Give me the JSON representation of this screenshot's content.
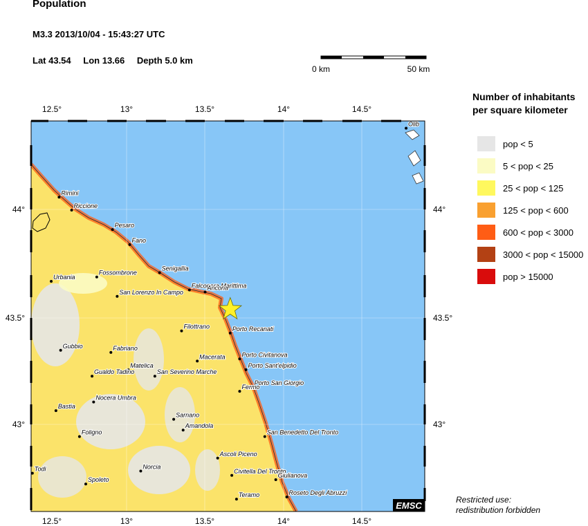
{
  "header": {
    "title": "Population",
    "event": "M3.3  2013/10/04 - 15:43:27 UTC",
    "lat": "Lat 43.54",
    "lon": "Lon  13.66",
    "depth": "Depth  5.0 km"
  },
  "scale_bar": {
    "start_label": "0 km",
    "end_label": "50 km"
  },
  "map": {
    "lon_ticks": [
      "12.5°",
      "13°",
      "13.5°",
      "14°",
      "14.5°"
    ],
    "lat_ticks": [
      "44°",
      "43.5°",
      "43°"
    ],
    "credit": "EMSC",
    "epicenter": {
      "lat": 43.54,
      "lon": 13.66
    },
    "colors": {
      "sea": "#87c6f7",
      "land": "#fbe36a",
      "epicenter": "#fff12a"
    },
    "cities": [
      {
        "name": "Rimini",
        "lon": 12.57,
        "lat": 44.06
      },
      {
        "name": "Riccione",
        "lon": 12.65,
        "lat": 44.0
      },
      {
        "name": "Pesaro",
        "lon": 12.91,
        "lat": 43.91
      },
      {
        "name": "Fano",
        "lon": 13.02,
        "lat": 43.84
      },
      {
        "name": "Senigallia",
        "lon": 13.21,
        "lat": 43.71
      },
      {
        "name": "Urbania",
        "lon": 12.52,
        "lat": 43.67
      },
      {
        "name": "Fossombrone",
        "lon": 12.81,
        "lat": 43.69
      },
      {
        "name": "Falconara Marittima",
        "lon": 13.4,
        "lat": 43.63
      },
      {
        "name": "Ancona",
        "lon": 13.5,
        "lat": 43.62
      },
      {
        "name": "San Lorenzo In Campo",
        "lon": 12.94,
        "lat": 43.6
      },
      {
        "name": "Filottrano",
        "lon": 13.35,
        "lat": 43.44
      },
      {
        "name": "Porto Recanati",
        "lon": 13.66,
        "lat": 43.43
      },
      {
        "name": "Gubbio",
        "lon": 12.58,
        "lat": 43.35
      },
      {
        "name": "Fabriano",
        "lon": 12.9,
        "lat": 43.34
      },
      {
        "name": "Porto Civitanova",
        "lon": 13.72,
        "lat": 43.31
      },
      {
        "name": "Macerata",
        "lon": 13.45,
        "lat": 43.3
      },
      {
        "name": "Porto Sant'elpidio",
        "lon": 13.76,
        "lat": 43.26
      },
      {
        "name": "Matelica",
        "lon": 13.01,
        "lat": 43.26
      },
      {
        "name": "Gualdo Tadino",
        "lon": 12.78,
        "lat": 43.23
      },
      {
        "name": "San Severino Marche",
        "lon": 13.18,
        "lat": 43.23
      },
      {
        "name": "Porto San Giorgio",
        "lon": 13.8,
        "lat": 43.18
      },
      {
        "name": "Fermo",
        "lon": 13.72,
        "lat": 43.16
      },
      {
        "name": "Nocera Umbra",
        "lon": 12.79,
        "lat": 43.11
      },
      {
        "name": "Bastia",
        "lon": 12.55,
        "lat": 43.07
      },
      {
        "name": "Sarnano",
        "lon": 13.3,
        "lat": 43.03
      },
      {
        "name": "Amandola",
        "lon": 13.36,
        "lat": 42.98
      },
      {
        "name": "Foligno",
        "lon": 12.7,
        "lat": 42.95
      },
      {
        "name": "San Benedetto Del Tronto",
        "lon": 13.88,
        "lat": 42.95
      },
      {
        "name": "Ascoli Piceno",
        "lon": 13.58,
        "lat": 42.85
      },
      {
        "name": "Todi",
        "lon": 12.4,
        "lat": 42.78
      },
      {
        "name": "Norcia",
        "lon": 13.09,
        "lat": 42.79
      },
      {
        "name": "Civitella Del Tronto",
        "lon": 13.67,
        "lat": 42.77
      },
      {
        "name": "Giulianova",
        "lon": 13.95,
        "lat": 42.75
      },
      {
        "name": "Spoleto",
        "lon": 12.74,
        "lat": 42.73
      },
      {
        "name": "Teramo",
        "lon": 13.7,
        "lat": 42.66
      },
      {
        "name": "Roseto Degli Abruzzi",
        "lon": 14.02,
        "lat": 42.67
      },
      {
        "name": "Olib",
        "lon": 14.78,
        "lat": 44.38
      }
    ]
  },
  "legend": {
    "title_line1": "Number of inhabitants",
    "title_line2": "per square kilometer",
    "items": [
      {
        "label": "pop < 5",
        "color": "#e6e6e6"
      },
      {
        "label": "5 < pop < 25",
        "color": "#fbfbc4"
      },
      {
        "label": "25 < pop < 125",
        "color": "#fff85e"
      },
      {
        "label": "125 < pop < 600",
        "color": "#f9a030"
      },
      {
        "label": "600 < pop < 3000",
        "color": "#ff5d15"
      },
      {
        "label": "3000 < pop < 15000",
        "color": "#b34114"
      },
      {
        "label": "pop > 15000",
        "color": "#d90c0c"
      }
    ]
  },
  "note": {
    "line1": "Restricted use:",
    "line2": "redistribution forbidden"
  }
}
